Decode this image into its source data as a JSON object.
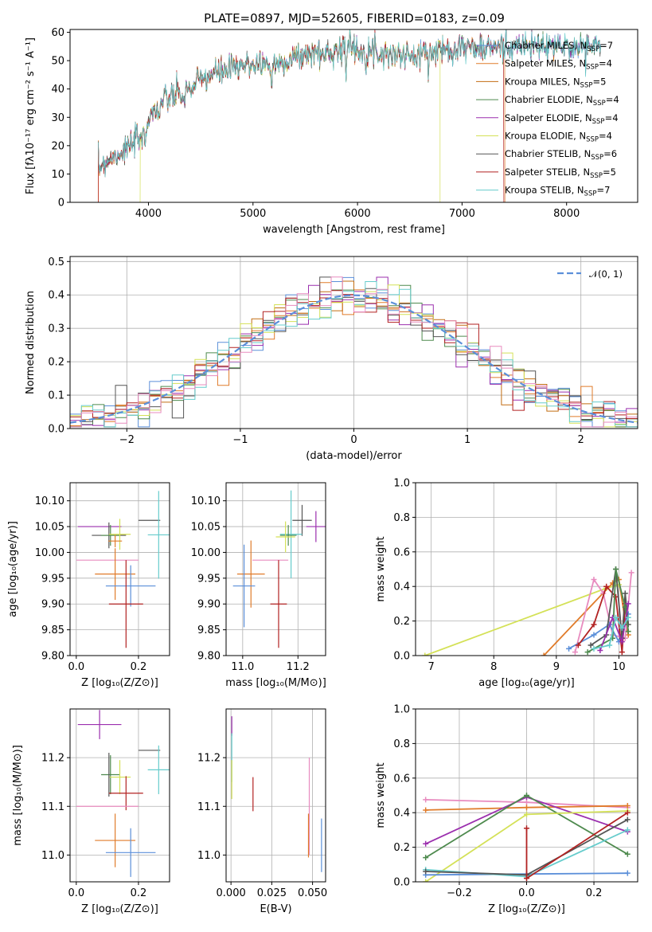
{
  "figure": {
    "title": "PLATE=0897, MJD=52605, FIBERID=0183, z=0.09"
  },
  "colors": {
    "chabrier_miles": "#5b8fd9",
    "salpeter_miles": "#e07b2a",
    "kroupa_miles": "#c26d12",
    "chabrier_elodie": "#4e8a4e",
    "salpeter_elodie": "#9b2fae",
    "kroupa_elodie": "#d4e157",
    "chabrier_stelib": "#555555",
    "salpeter_stelib": "#b22222",
    "kroupa_stelib": "#66cccc",
    "pink": "#e88bbf",
    "gauss": "#5b8fd9"
  },
  "chart_data": [
    {
      "type": "line",
      "id": "spectrum",
      "xlabel": "wavelength [Angstrom, rest frame]",
      "ylabel": "Flux [fλ10⁻¹⁷ erg cm⁻² s⁻¹ A⁻¹]",
      "xlim": [
        3250,
        8680
      ],
      "ylim": [
        0,
        61
      ],
      "xticks": [
        4000,
        5000,
        6000,
        7000,
        8000
      ],
      "yticks": [
        0,
        10,
        20,
        30,
        40,
        50,
        60
      ],
      "grid": false,
      "legend_position": "top-right",
      "legend": [
        "Chabrier MILES, N_SSP=7",
        "Salpeter MILES, N_SSP=4",
        "Kroupa MILES, N_SSP=5",
        "Chabrier ELODIE, N_SSP=4",
        "Salpeter ELODIE, N_SSP=4",
        "Kroupa ELODIE, N_SSP=4",
        "Chabrier STELIB, N_SSP=6",
        "Salpeter STELIB, N_SSP=5",
        "Kroupa STELIB, N_SSP=7"
      ],
      "continuum": {
        "x": [
          3520,
          3600,
          3700,
          3800,
          3870,
          3950,
          4000,
          4100,
          4200,
          4300,
          4400,
          4500,
          4600,
          4700,
          4800,
          4900,
          5000,
          5100,
          5200,
          5300,
          5400,
          5500,
          5600,
          5700,
          5800,
          5900,
          6000,
          6200,
          6400,
          6600,
          6800,
          7000,
          7200,
          7400,
          7600,
          7800,
          8000,
          8200,
          8400
        ],
        "y": [
          12,
          15,
          17,
          19,
          21,
          25,
          30,
          34,
          37,
          38,
          40,
          43,
          45,
          46,
          47,
          48,
          49,
          49,
          48,
          50,
          51,
          52,
          53,
          52,
          54,
          55,
          54,
          53,
          52,
          52,
          54,
          55,
          54,
          55,
          55,
          55,
          55,
          55,
          55
        ]
      },
      "model_cutoffs": [
        {
          "series": "Salpeter MILES",
          "range": [
            3520,
            7410
          ]
        },
        {
          "series": "Kroupa ELODIE",
          "range": [
            3920,
            6790
          ]
        },
        {
          "series": "Salpeter STELIB",
          "range": [
            3520,
            7400
          ]
        }
      ]
    },
    {
      "type": "histogram",
      "id": "residuals",
      "xlabel": "(data-model)/error",
      "ylabel": "Normed distribution",
      "xlim": [
        -2.5,
        2.5
      ],
      "ylim": [
        0,
        0.515
      ],
      "xticks": [
        -2,
        -1,
        0,
        1,
        2
      ],
      "yticks": [
        0.0,
        0.1,
        0.2,
        0.3,
        0.4,
        0.5
      ],
      "grid": true,
      "legend": [
        "𝒩(0, 1)"
      ],
      "legend_position": "top-right",
      "bin_width": 0.1
    },
    {
      "type": "scatter",
      "id": "age_vs_Z",
      "xlabel": "Z [log₁₀(Z/Z⊙)]",
      "ylabel": "age  [log₁₀(age/yr)]",
      "xlim": [
        -0.02,
        0.3
      ],
      "ylim": [
        9.8,
        10.135
      ],
      "xticks": [
        0.0,
        0.2
      ],
      "yticks": [
        9.8,
        9.85,
        9.9,
        9.95,
        10.0,
        10.05,
        10.1
      ],
      "grid": true,
      "points": [
        {
          "color": "salpeter_elodie",
          "x": 0.075,
          "xerr": 0.07,
          "y": 10.05,
          "yerr": 0.0
        },
        {
          "color": "chabrier_stelib",
          "x": 0.105,
          "xerr": 0.055,
          "y": 10.033,
          "yerr": 0.025
        },
        {
          "color": "chabrier_elodie",
          "x": 0.11,
          "xerr": 0.03,
          "y": 10.033,
          "yerr": 0.02
        },
        {
          "color": "kroupa_elodie",
          "x": 0.14,
          "xerr": 0.035,
          "y": 10.035,
          "yerr": 0.03
        },
        {
          "color": "salpeter_miles",
          "x": 0.125,
          "xerr": 0.022,
          "y": 10.022,
          "yerr": 0.012
        },
        {
          "color": "chabrier_stelib",
          "x": 0.235,
          "xerr": 0.035,
          "y": 10.062,
          "yerr": 0.0
        },
        {
          "color": "kroupa_stelib",
          "x": 0.265,
          "xerr": 0.035,
          "y": 10.034,
          "yerr": 0.085
        },
        {
          "color": "pink",
          "x": 0.1,
          "xerr": 0.1,
          "y": 9.985,
          "yerr": 0.0
        },
        {
          "color": "salpeter_miles",
          "x": 0.125,
          "xerr": 0.065,
          "y": 9.958,
          "yerr": 0.05
        },
        {
          "color": "chabrier_miles",
          "x": 0.175,
          "xerr": 0.08,
          "y": 9.935,
          "yerr": 0.04
        },
        {
          "color": "salpeter_stelib",
          "x": 0.16,
          "xerr": 0.055,
          "y": 9.9,
          "yerr": 0.085
        }
      ]
    },
    {
      "type": "scatter",
      "id": "age_vs_mass",
      "xlabel": "mass [log₁₀(M/M⊙)]",
      "ylabel": "",
      "xlim": [
        10.94,
        11.3
      ],
      "ylim": [
        9.8,
        10.135
      ],
      "xticks": [
        11.0,
        11.2
      ],
      "yticks": [
        9.8,
        9.85,
        9.9,
        9.95,
        10.0,
        10.05,
        10.1
      ],
      "grid": true,
      "points": [
        {
          "color": "salpeter_elodie",
          "x": 11.265,
          "xerr": 0.035,
          "y": 10.05,
          "yerr": 0.03
        },
        {
          "color": "chabrier_stelib",
          "x": 11.215,
          "xerr": 0.035,
          "y": 10.062,
          "yerr": 0.03
        },
        {
          "color": "kroupa_stelib",
          "x": 11.175,
          "xerr": 0.04,
          "y": 10.035,
          "yerr": 0.085
        },
        {
          "color": "chabrier_elodie",
          "x": 11.165,
          "xerr": 0.03,
          "y": 10.033,
          "yerr": 0.02
        },
        {
          "color": "kroupa_elodie",
          "x": 11.155,
          "xerr": 0.035,
          "y": 10.03,
          "yerr": 0.03
        },
        {
          "color": "pink",
          "x": 11.1,
          "xerr": 0.065,
          "y": 9.985,
          "yerr": 0.0
        },
        {
          "color": "salpeter_miles",
          "x": 11.03,
          "xerr": 0.05,
          "y": 9.958,
          "yerr": 0.065
        },
        {
          "color": "chabrier_miles",
          "x": 11.005,
          "xerr": 0.04,
          "y": 9.935,
          "yerr": 0.08
        },
        {
          "color": "salpeter_stelib",
          "x": 11.13,
          "xerr": 0.03,
          "y": 9.9,
          "yerr": 0.085
        }
      ]
    },
    {
      "type": "line",
      "id": "massweight_vs_age",
      "xlabel": "age  [log₁₀(age/yr)]",
      "ylabel": "mass weight",
      "xlim": [
        6.75,
        10.3
      ],
      "ylim": [
        0.0,
        1.0
      ],
      "xticks": [
        7,
        8,
        9,
        10
      ],
      "yticks": [
        0.0,
        0.2,
        0.4,
        0.6,
        0.8,
        1.0
      ],
      "grid": true,
      "series": [
        {
          "color": "kroupa_elodie",
          "x": [
            6.9,
            9.8,
            10.0
          ],
          "y": [
            0.0,
            0.39,
            0.41
          ]
        },
        {
          "color": "salpeter_miles",
          "x": [
            8.8,
            9.9,
            10.0,
            10.1,
            10.15
          ],
          "y": [
            0.0,
            0.42,
            0.44,
            0.2,
            0.12
          ]
        },
        {
          "color": "pink",
          "x": [
            9.3,
            9.6,
            9.75,
            9.9,
            10.1,
            10.2
          ],
          "y": [
            0.02,
            0.44,
            0.36,
            0.12,
            0.1,
            0.48
          ]
        },
        {
          "color": "chabrier_miles",
          "x": [
            9.2,
            9.6,
            9.85,
            10.0,
            10.15
          ],
          "y": [
            0.04,
            0.12,
            0.18,
            0.08,
            0.24
          ]
        },
        {
          "color": "salpeter_stelib",
          "x": [
            9.35,
            9.6,
            9.8,
            9.95,
            10.05,
            10.1
          ],
          "y": [
            0.06,
            0.18,
            0.4,
            0.34,
            0.02,
            0.3
          ]
        },
        {
          "color": "chabrier_stelib",
          "x": [
            9.55,
            9.8,
            9.95,
            10.05,
            10.1,
            10.15
          ],
          "y": [
            0.06,
            0.12,
            0.5,
            0.1,
            0.36,
            0.18
          ]
        },
        {
          "color": "chabrier_elodie",
          "x": [
            9.5,
            9.9,
            9.95,
            10.1,
            10.15
          ],
          "y": [
            0.02,
            0.1,
            0.5,
            0.28,
            0.14
          ]
        },
        {
          "color": "salpeter_elodie",
          "x": [
            9.7,
            9.9,
            10.05,
            10.15
          ],
          "y": [
            0.03,
            0.22,
            0.08,
            0.3
          ]
        },
        {
          "color": "kroupa_stelib",
          "x": [
            9.6,
            9.85,
            9.95,
            10.05,
            10.15
          ],
          "y": [
            0.04,
            0.06,
            0.22,
            0.16,
            0.22
          ]
        }
      ]
    },
    {
      "type": "scatter",
      "id": "mass_vs_Z",
      "xlabel": "Z [log₁₀(Z/Z⊙)]",
      "ylabel": "mass [log₁₀(M/M⊙)]",
      "xlim": [
        -0.02,
        0.3
      ],
      "ylim": [
        10.945,
        11.3
      ],
      "xticks": [
        0.0,
        0.2
      ],
      "yticks": [
        11.0,
        11.1,
        11.2
      ],
      "grid": true,
      "points": [
        {
          "color": "salpeter_elodie",
          "x": 0.075,
          "xerr": 0.07,
          "y": 11.268,
          "yerr": 0.03
        },
        {
          "color": "chabrier_stelib",
          "x": 0.235,
          "xerr": 0.035,
          "y": 11.215,
          "yerr": 0.0
        },
        {
          "color": "kroupa_stelib",
          "x": 0.265,
          "xerr": 0.035,
          "y": 11.175,
          "yerr": 0.05
        },
        {
          "color": "chabrier_elodie",
          "x": 0.11,
          "xerr": 0.03,
          "y": 11.165,
          "yerr": 0.04
        },
        {
          "color": "kroupa_elodie",
          "x": 0.14,
          "xerr": 0.035,
          "y": 11.16,
          "yerr": 0.035
        },
        {
          "color": "chabrier_stelib",
          "x": 0.105,
          "xerr": 0.0,
          "y": 11.165,
          "yerr": 0.045
        },
        {
          "color": "salpeter_stelib",
          "x": 0.16,
          "xerr": 0.055,
          "y": 11.127,
          "yerr": 0.035
        },
        {
          "color": "pink",
          "x": 0.1,
          "xerr": 0.1,
          "y": 11.1,
          "yerr": 0.0
        },
        {
          "color": "salpeter_miles",
          "x": 0.125,
          "xerr": 0.065,
          "y": 11.03,
          "yerr": 0.055
        },
        {
          "color": "chabrier_miles",
          "x": 0.175,
          "xerr": 0.08,
          "y": 11.005,
          "yerr": 0.05
        }
      ]
    },
    {
      "type": "scatter",
      "id": "mass_vs_ebv",
      "xlabel": "E(B-V)",
      "ylabel": "",
      "xlim": [
        -0.003,
        0.058
      ],
      "ylim": [
        10.945,
        11.3
      ],
      "xticks": [
        0.0,
        0.025,
        0.05
      ],
      "xtick_labels": [
        "0.000",
        "0.025",
        "0.050"
      ],
      "yticks": [
        11.0,
        11.1,
        11.2
      ],
      "grid": true,
      "points": [
        {
          "color": "salpeter_elodie",
          "x": 0.0005,
          "xerr": 0.0,
          "y": 11.265,
          "yerr": 0.02
        },
        {
          "color": "kroupa_stelib",
          "x": 0.0005,
          "xerr": 0.0,
          "y": 11.2,
          "yerr": 0.05
        },
        {
          "color": "kroupa_elodie",
          "x": 0.0005,
          "xerr": 0.0,
          "y": 11.155,
          "yerr": 0.04
        },
        {
          "color": "salpeter_stelib",
          "x": 0.0135,
          "xerr": 0.0,
          "y": 11.125,
          "yerr": 0.035
        },
        {
          "color": "pink",
          "x": 0.048,
          "xerr": 0.0,
          "y": 11.1,
          "yerr": 0.1
        },
        {
          "color": "salpeter_miles",
          "x": 0.0475,
          "xerr": 0.0,
          "y": 11.04,
          "yerr": 0.045
        },
        {
          "color": "chabrier_miles",
          "x": 0.0555,
          "xerr": 0.0,
          "y": 11.02,
          "yerr": 0.055
        }
      ]
    },
    {
      "type": "line",
      "id": "massweight_vs_Z",
      "xlabel": "Z [log₁₀(Z/Z⊙)]",
      "ylabel": "mass weight",
      "xlim": [
        -0.33,
        0.33
      ],
      "ylim": [
        0.0,
        1.0
      ],
      "xticks": [
        -0.2,
        0.0,
        0.2
      ],
      "yticks": [
        0.0,
        0.2,
        0.4,
        0.6,
        0.8,
        1.0
      ],
      "grid": true,
      "series": [
        {
          "color": "pink",
          "x": [
            -0.3,
            0.0,
            0.3
          ],
          "y": [
            0.475,
            0.46,
            0.43
          ]
        },
        {
          "color": "salpeter_miles",
          "x": [
            -0.3,
            0.0,
            0.3
          ],
          "y": [
            0.415,
            0.43,
            0.44
          ]
        },
        {
          "color": "salpeter_elodie",
          "x": [
            -0.3,
            0.0,
            0.3
          ],
          "y": [
            0.22,
            0.49,
            0.29
          ]
        },
        {
          "color": "chabrier_elodie",
          "x": [
            -0.3,
            0.0,
            0.3
          ],
          "y": [
            0.14,
            0.5,
            0.16
          ]
        },
        {
          "color": "kroupa_elodie",
          "x": [
            -0.3,
            0.0,
            0.3
          ],
          "y": [
            0.0,
            0.39,
            0.41
          ]
        },
        {
          "color": "chabrier_miles",
          "x": [
            -0.3,
            0.0,
            0.3
          ],
          "y": [
            0.04,
            0.045,
            0.05
          ]
        },
        {
          "color": "kroupa_stelib",
          "x": [
            -0.3,
            0.0,
            0.3
          ],
          "y": [
            0.07,
            0.03,
            0.3
          ]
        },
        {
          "color": "chabrier_stelib",
          "x": [
            -0.3,
            0.0,
            0.3
          ],
          "y": [
            0.06,
            0.04,
            0.36
          ]
        },
        {
          "color": "salpeter_stelib",
          "x": [
            0.0,
            0.0,
            0.3
          ],
          "y": [
            0.31,
            0.02,
            0.4
          ]
        }
      ]
    }
  ]
}
